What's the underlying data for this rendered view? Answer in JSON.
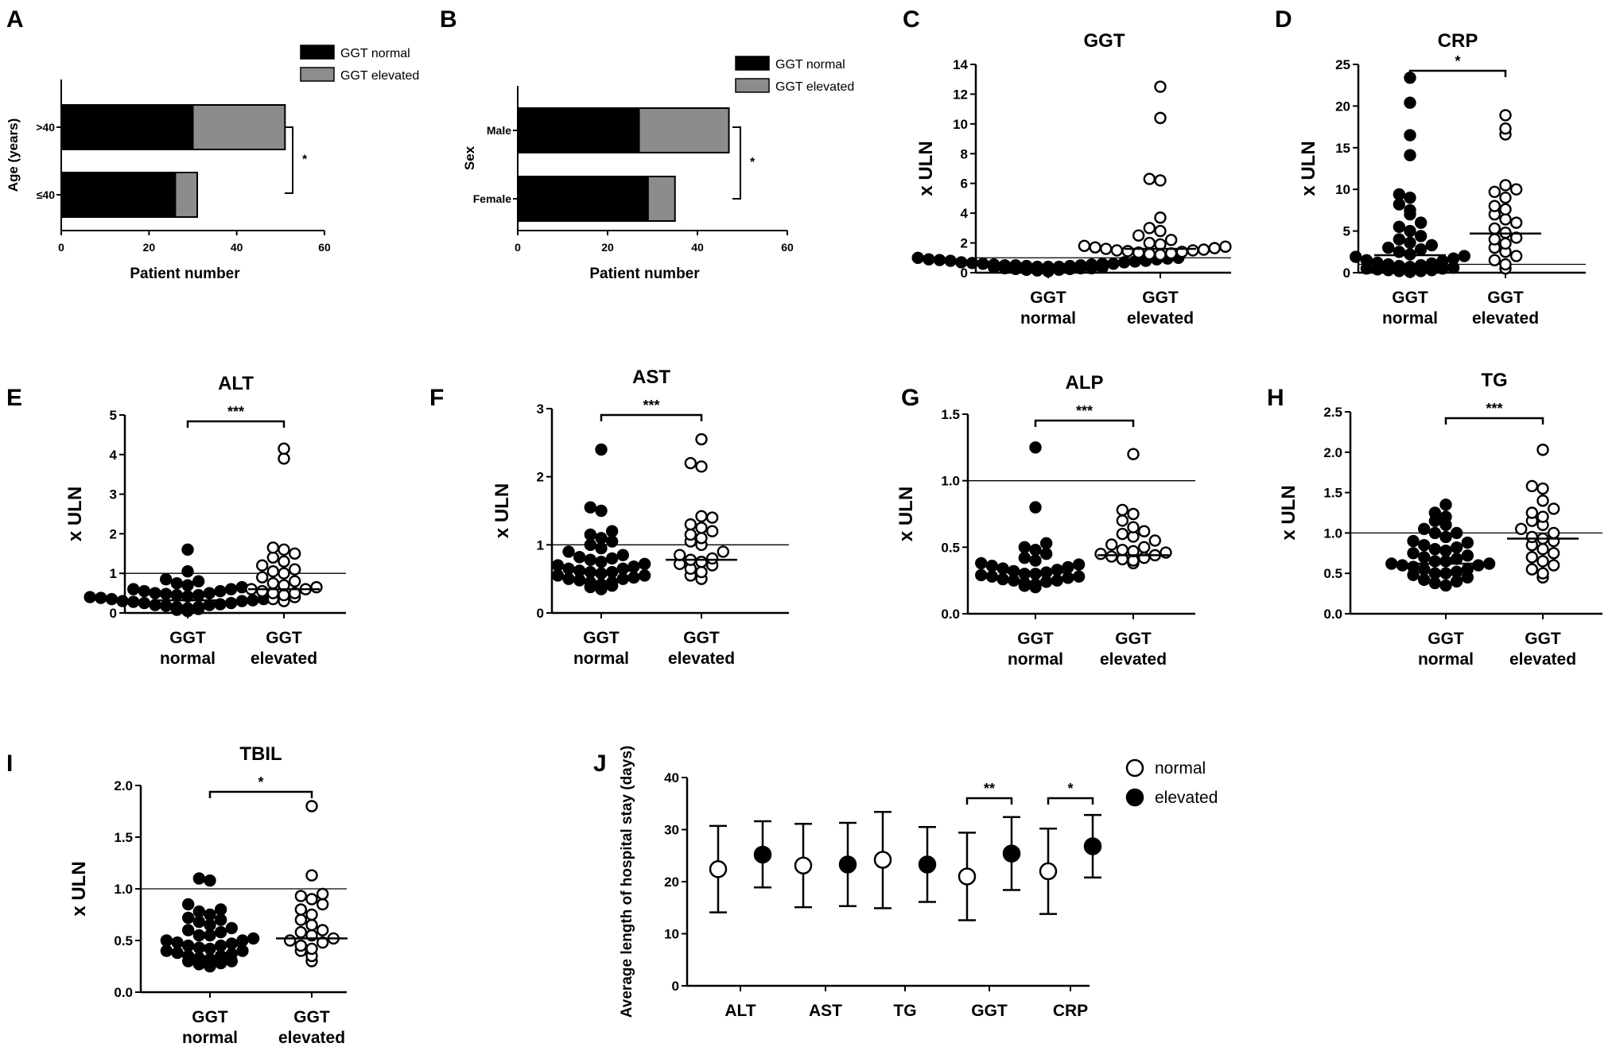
{
  "figure": {
    "panels": [
      "A",
      "B",
      "C",
      "D",
      "E",
      "F",
      "G",
      "H",
      "I",
      "J"
    ],
    "colors": {
      "normal_fill": "#000000",
      "elevated_fill": "#8c8c8c",
      "open_fill": "#ffffff",
      "stroke": "#000000"
    }
  },
  "chart_data": [
    {
      "id": "A",
      "type": "bar",
      "orientation": "horizontal",
      "stacked": true,
      "title": "",
      "ylabel": "Age (years)",
      "xlabel": "Patient number",
      "categories": [
        ">40",
        "≤40"
      ],
      "series": [
        {
          "name": "GGT normal",
          "values": [
            30,
            26
          ]
        },
        {
          "name": "GGT elevated",
          "values": [
            21,
            5
          ]
        }
      ],
      "xlim": [
        0,
        60
      ],
      "xticks": [
        "0",
        "20",
        "40",
        "60"
      ],
      "legend": "top-right",
      "annotation": "*"
    },
    {
      "id": "B",
      "type": "bar",
      "orientation": "horizontal",
      "stacked": true,
      "title": "",
      "ylabel": "Sex",
      "xlabel": "Patient number",
      "categories": [
        "Male",
        "Female"
      ],
      "series": [
        {
          "name": "GGT normal",
          "values": [
            27,
            29
          ]
        },
        {
          "name": "GGT elevated",
          "values": [
            20,
            6
          ]
        }
      ],
      "xlim": [
        0,
        60
      ],
      "xticks": [
        "0",
        "20",
        "40",
        "60"
      ],
      "legend": "top-right",
      "annotation": "*"
    },
    {
      "id": "C",
      "type": "scatter",
      "title": "GGT",
      "ylabel": "x ULN",
      "categories": [
        [
          "GGT",
          "normal"
        ],
        [
          "GGT",
          "elevated"
        ]
      ],
      "ylim": [
        0,
        14
      ],
      "yticks": [
        "0",
        "2",
        "4",
        "6",
        "8",
        "10",
        "12",
        "14"
      ],
      "reference_line": 1,
      "medians": [
        0.5,
        1.6
      ],
      "significance": "",
      "series": [
        {
          "name": "GGT normal",
          "values": [
            0.1,
            0.15,
            0.2,
            0.2,
            0.25,
            0.25,
            0.3,
            0.3,
            0.3,
            0.35,
            0.35,
            0.4,
            0.4,
            0.4,
            0.45,
            0.45,
            0.5,
            0.5,
            0.5,
            0.55,
            0.55,
            0.6,
            0.6,
            0.6,
            0.65,
            0.7,
            0.7,
            0.75,
            0.8,
            0.8,
            0.85,
            0.9,
            0.9,
            0.95,
            1.0,
            1.0
          ]
        },
        {
          "name": "GGT elevated",
          "values": [
            1.1,
            1.2,
            1.25,
            1.3,
            1.35,
            1.4,
            1.45,
            1.5,
            1.5,
            1.55,
            1.6,
            1.65,
            1.7,
            1.75,
            1.8,
            1.9,
            2.0,
            2.2,
            2.5,
            2.8,
            3.0,
            3.7,
            6.2,
            6.3,
            10.4,
            12.5
          ]
        }
      ]
    },
    {
      "id": "D",
      "type": "scatter",
      "title": "CRP",
      "ylabel": "x ULN",
      "categories": [
        [
          "GGT",
          "normal"
        ],
        [
          "GGT",
          "elevated"
        ]
      ],
      "ylim": [
        0,
        25
      ],
      "yticks": [
        "0",
        "5",
        "10",
        "15",
        "20",
        "25"
      ],
      "reference_line": 1,
      "medians": [
        2.1,
        4.7
      ],
      "significance": "*",
      "series": [
        {
          "name": "GGT normal",
          "values": [
            0.1,
            0.2,
            0.2,
            0.3,
            0.3,
            0.4,
            0.5,
            0.5,
            0.6,
            0.7,
            0.8,
            0.9,
            1.0,
            1.1,
            1.2,
            1.4,
            1.5,
            1.7,
            1.9,
            2.0,
            2.2,
            2.5,
            2.8,
            3.0,
            3.3,
            3.6,
            4.0,
            4.4,
            5.0,
            5.5,
            6.0,
            7.0,
            7.5,
            8.2,
            9.0,
            9.4,
            14.1,
            16.5,
            20.4,
            23.4
          ]
        },
        {
          "name": "GGT elevated",
          "values": [
            0.5,
            1.0,
            1.5,
            2.0,
            2.5,
            3.0,
            3.5,
            4.0,
            4.2,
            4.8,
            5.3,
            6.0,
            6.4,
            7.0,
            7.6,
            8.0,
            9.0,
            9.7,
            10.0,
            10.5,
            16.6,
            17.3,
            18.9
          ]
        }
      ]
    },
    {
      "id": "E",
      "type": "scatter",
      "title": "ALT",
      "ylabel": "x ULN",
      "categories": [
        [
          "GGT",
          "normal"
        ],
        [
          "GGT",
          "elevated"
        ]
      ],
      "ylim": [
        0,
        5
      ],
      "yticks": [
        "0",
        "1",
        "2",
        "3",
        "4",
        "5"
      ],
      "reference_line": 1,
      "medians": [
        0.32,
        0.6
      ],
      "significance": "***",
      "series": [
        {
          "name": "GGT normal",
          "values": [
            0.05,
            0.08,
            0.1,
            0.12,
            0.15,
            0.15,
            0.18,
            0.2,
            0.2,
            0.22,
            0.25,
            0.25,
            0.28,
            0.3,
            0.3,
            0.32,
            0.35,
            0.35,
            0.38,
            0.4,
            0.4,
            0.42,
            0.45,
            0.45,
            0.48,
            0.5,
            0.5,
            0.55,
            0.55,
            0.6,
            0.6,
            0.65,
            0.7,
            0.75,
            0.8,
            0.85,
            1.05,
            1.6
          ]
        },
        {
          "name": "GGT elevated",
          "values": [
            0.3,
            0.35,
            0.4,
            0.45,
            0.5,
            0.5,
            0.55,
            0.6,
            0.6,
            0.65,
            0.7,
            0.75,
            0.8,
            0.9,
            1.0,
            1.05,
            1.1,
            1.2,
            1.3,
            1.4,
            1.5,
            1.6,
            1.65,
            3.9,
            4.15
          ]
        }
      ]
    },
    {
      "id": "F",
      "type": "scatter",
      "title": "AST",
      "ylabel": "x ULN",
      "categories": [
        [
          "GGT",
          "normal"
        ],
        [
          "GGT",
          "elevated"
        ]
      ],
      "ylim": [
        0,
        3
      ],
      "yticks": [
        "0",
        "1",
        "2",
        "3"
      ],
      "reference_line": 1,
      "medians": [
        0.62,
        0.78
      ],
      "significance": "***",
      "series": [
        {
          "name": "GGT normal",
          "values": [
            0.35,
            0.38,
            0.4,
            0.42,
            0.45,
            0.45,
            0.48,
            0.5,
            0.5,
            0.52,
            0.55,
            0.55,
            0.58,
            0.6,
            0.6,
            0.62,
            0.65,
            0.65,
            0.68,
            0.7,
            0.72,
            0.75,
            0.78,
            0.8,
            0.82,
            0.85,
            0.9,
            0.95,
            1.0,
            1.05,
            1.1,
            1.15,
            1.2,
            1.5,
            1.55,
            2.4
          ]
        },
        {
          "name": "GGT elevated",
          "values": [
            0.5,
            0.55,
            0.6,
            0.65,
            0.7,
            0.72,
            0.75,
            0.78,
            0.8,
            0.85,
            0.9,
            1.0,
            1.05,
            1.1,
            1.15,
            1.2,
            1.25,
            1.3,
            1.4,
            1.42,
            2.15,
            2.2,
            2.55
          ]
        }
      ]
    },
    {
      "id": "G",
      "type": "scatter",
      "title": "ALP",
      "ylabel": "x ULN",
      "categories": [
        [
          "GGT",
          "normal"
        ],
        [
          "GGT",
          "elevated"
        ]
      ],
      "ylim": [
        0,
        1.5
      ],
      "yticks": [
        "0.0",
        "0.5",
        "1.0",
        "1.5"
      ],
      "reference_line": 1,
      "medians": [
        0.31,
        0.44
      ],
      "significance": "***",
      "series": [
        {
          "name": "GGT normal",
          "values": [
            0.2,
            0.21,
            0.22,
            0.23,
            0.24,
            0.25,
            0.25,
            0.26,
            0.27,
            0.28,
            0.28,
            0.29,
            0.3,
            0.3,
            0.31,
            0.32,
            0.33,
            0.34,
            0.35,
            0.36,
            0.37,
            0.38,
            0.4,
            0.42,
            0.45,
            0.48,
            0.5,
            0.53,
            0.8,
            1.25
          ]
        },
        {
          "name": "GGT elevated",
          "values": [
            0.38,
            0.4,
            0.41,
            0.42,
            0.43,
            0.44,
            0.45,
            0.46,
            0.47,
            0.48,
            0.5,
            0.52,
            0.55,
            0.58,
            0.6,
            0.62,
            0.65,
            0.7,
            0.75,
            0.78,
            1.2
          ]
        }
      ]
    },
    {
      "id": "H",
      "type": "scatter",
      "title": "TG",
      "ylabel": "x ULN",
      "categories": [
        [
          "GGT",
          "normal"
        ],
        [
          "GGT",
          "elevated"
        ]
      ],
      "ylim": [
        0,
        2.5
      ],
      "yticks": [
        "0.0",
        "0.5",
        "1.0",
        "1.5",
        "2.0",
        "2.5"
      ],
      "reference_line": 1,
      "medians": [
        0.62,
        0.93
      ],
      "significance": "***",
      "series": [
        {
          "name": "GGT normal",
          "values": [
            0.35,
            0.38,
            0.4,
            0.42,
            0.45,
            0.48,
            0.5,
            0.5,
            0.52,
            0.55,
            0.55,
            0.58,
            0.6,
            0.6,
            0.62,
            0.62,
            0.65,
            0.65,
            0.68,
            0.7,
            0.72,
            0.75,
            0.78,
            0.8,
            0.82,
            0.85,
            0.88,
            0.9,
            0.95,
            1.0,
            1.0,
            1.05,
            1.1,
            1.15,
            1.2,
            1.25,
            1.35
          ]
        },
        {
          "name": "GGT elevated",
          "values": [
            0.45,
            0.5,
            0.55,
            0.6,
            0.65,
            0.7,
            0.75,
            0.8,
            0.85,
            0.9,
            0.93,
            0.95,
            1.0,
            1.05,
            1.1,
            1.15,
            1.2,
            1.25,
            1.3,
            1.4,
            1.55,
            1.58,
            2.03
          ]
        }
      ]
    },
    {
      "id": "I",
      "type": "scatter",
      "title": "TBIL",
      "ylabel": "x ULN",
      "categories": [
        [
          "GGT",
          "normal"
        ],
        [
          "GGT",
          "elevated"
        ]
      ],
      "ylim": [
        0,
        2.0
      ],
      "yticks": [
        "0.0",
        "0.5",
        "1.0",
        "1.5",
        "2.0"
      ],
      "reference_line": 1,
      "medians": [
        0.45,
        0.52
      ],
      "significance": "*",
      "series": [
        {
          "name": "GGT normal",
          "values": [
            0.25,
            0.27,
            0.28,
            0.3,
            0.3,
            0.32,
            0.33,
            0.35,
            0.35,
            0.37,
            0.38,
            0.4,
            0.4,
            0.42,
            0.43,
            0.45,
            0.45,
            0.47,
            0.48,
            0.5,
            0.5,
            0.52,
            0.55,
            0.55,
            0.58,
            0.6,
            0.62,
            0.65,
            0.68,
            0.7,
            0.72,
            0.75,
            0.78,
            0.8,
            0.85,
            1.08,
            1.1
          ]
        },
        {
          "name": "GGT elevated",
          "values": [
            0.3,
            0.35,
            0.4,
            0.42,
            0.45,
            0.48,
            0.5,
            0.52,
            0.55,
            0.58,
            0.6,
            0.65,
            0.7,
            0.75,
            0.8,
            0.85,
            0.9,
            0.93,
            0.95,
            1.13,
            1.8
          ]
        }
      ]
    },
    {
      "id": "J",
      "type": "scatter",
      "title": "",
      "ylabel": "Average length of hospital stay (days)",
      "ylim": [
        0,
        40
      ],
      "yticks": [
        "0",
        "10",
        "20",
        "30",
        "40"
      ],
      "categories": [
        "ALT",
        "AST",
        "TG",
        "GGT",
        "CRP"
      ],
      "legend": "top-right",
      "significance": [
        "",
        "",
        "",
        "**",
        "*"
      ],
      "series": [
        {
          "name": "normal",
          "values": [
            22.4,
            23.1,
            24.2,
            21.0,
            22.0
          ],
          "err_low": [
            14.1,
            15.1,
            14.9,
            12.6,
            13.8
          ],
          "err_high": [
            30.7,
            31.1,
            33.4,
            29.4,
            30.2
          ]
        },
        {
          "name": "elevated",
          "values": [
            25.2,
            23.3,
            23.3,
            25.4,
            26.8
          ],
          "err_low": [
            18.9,
            15.3,
            16.1,
            18.4,
            20.8
          ],
          "err_high": [
            31.6,
            31.3,
            30.5,
            32.4,
            32.8
          ]
        }
      ]
    }
  ]
}
